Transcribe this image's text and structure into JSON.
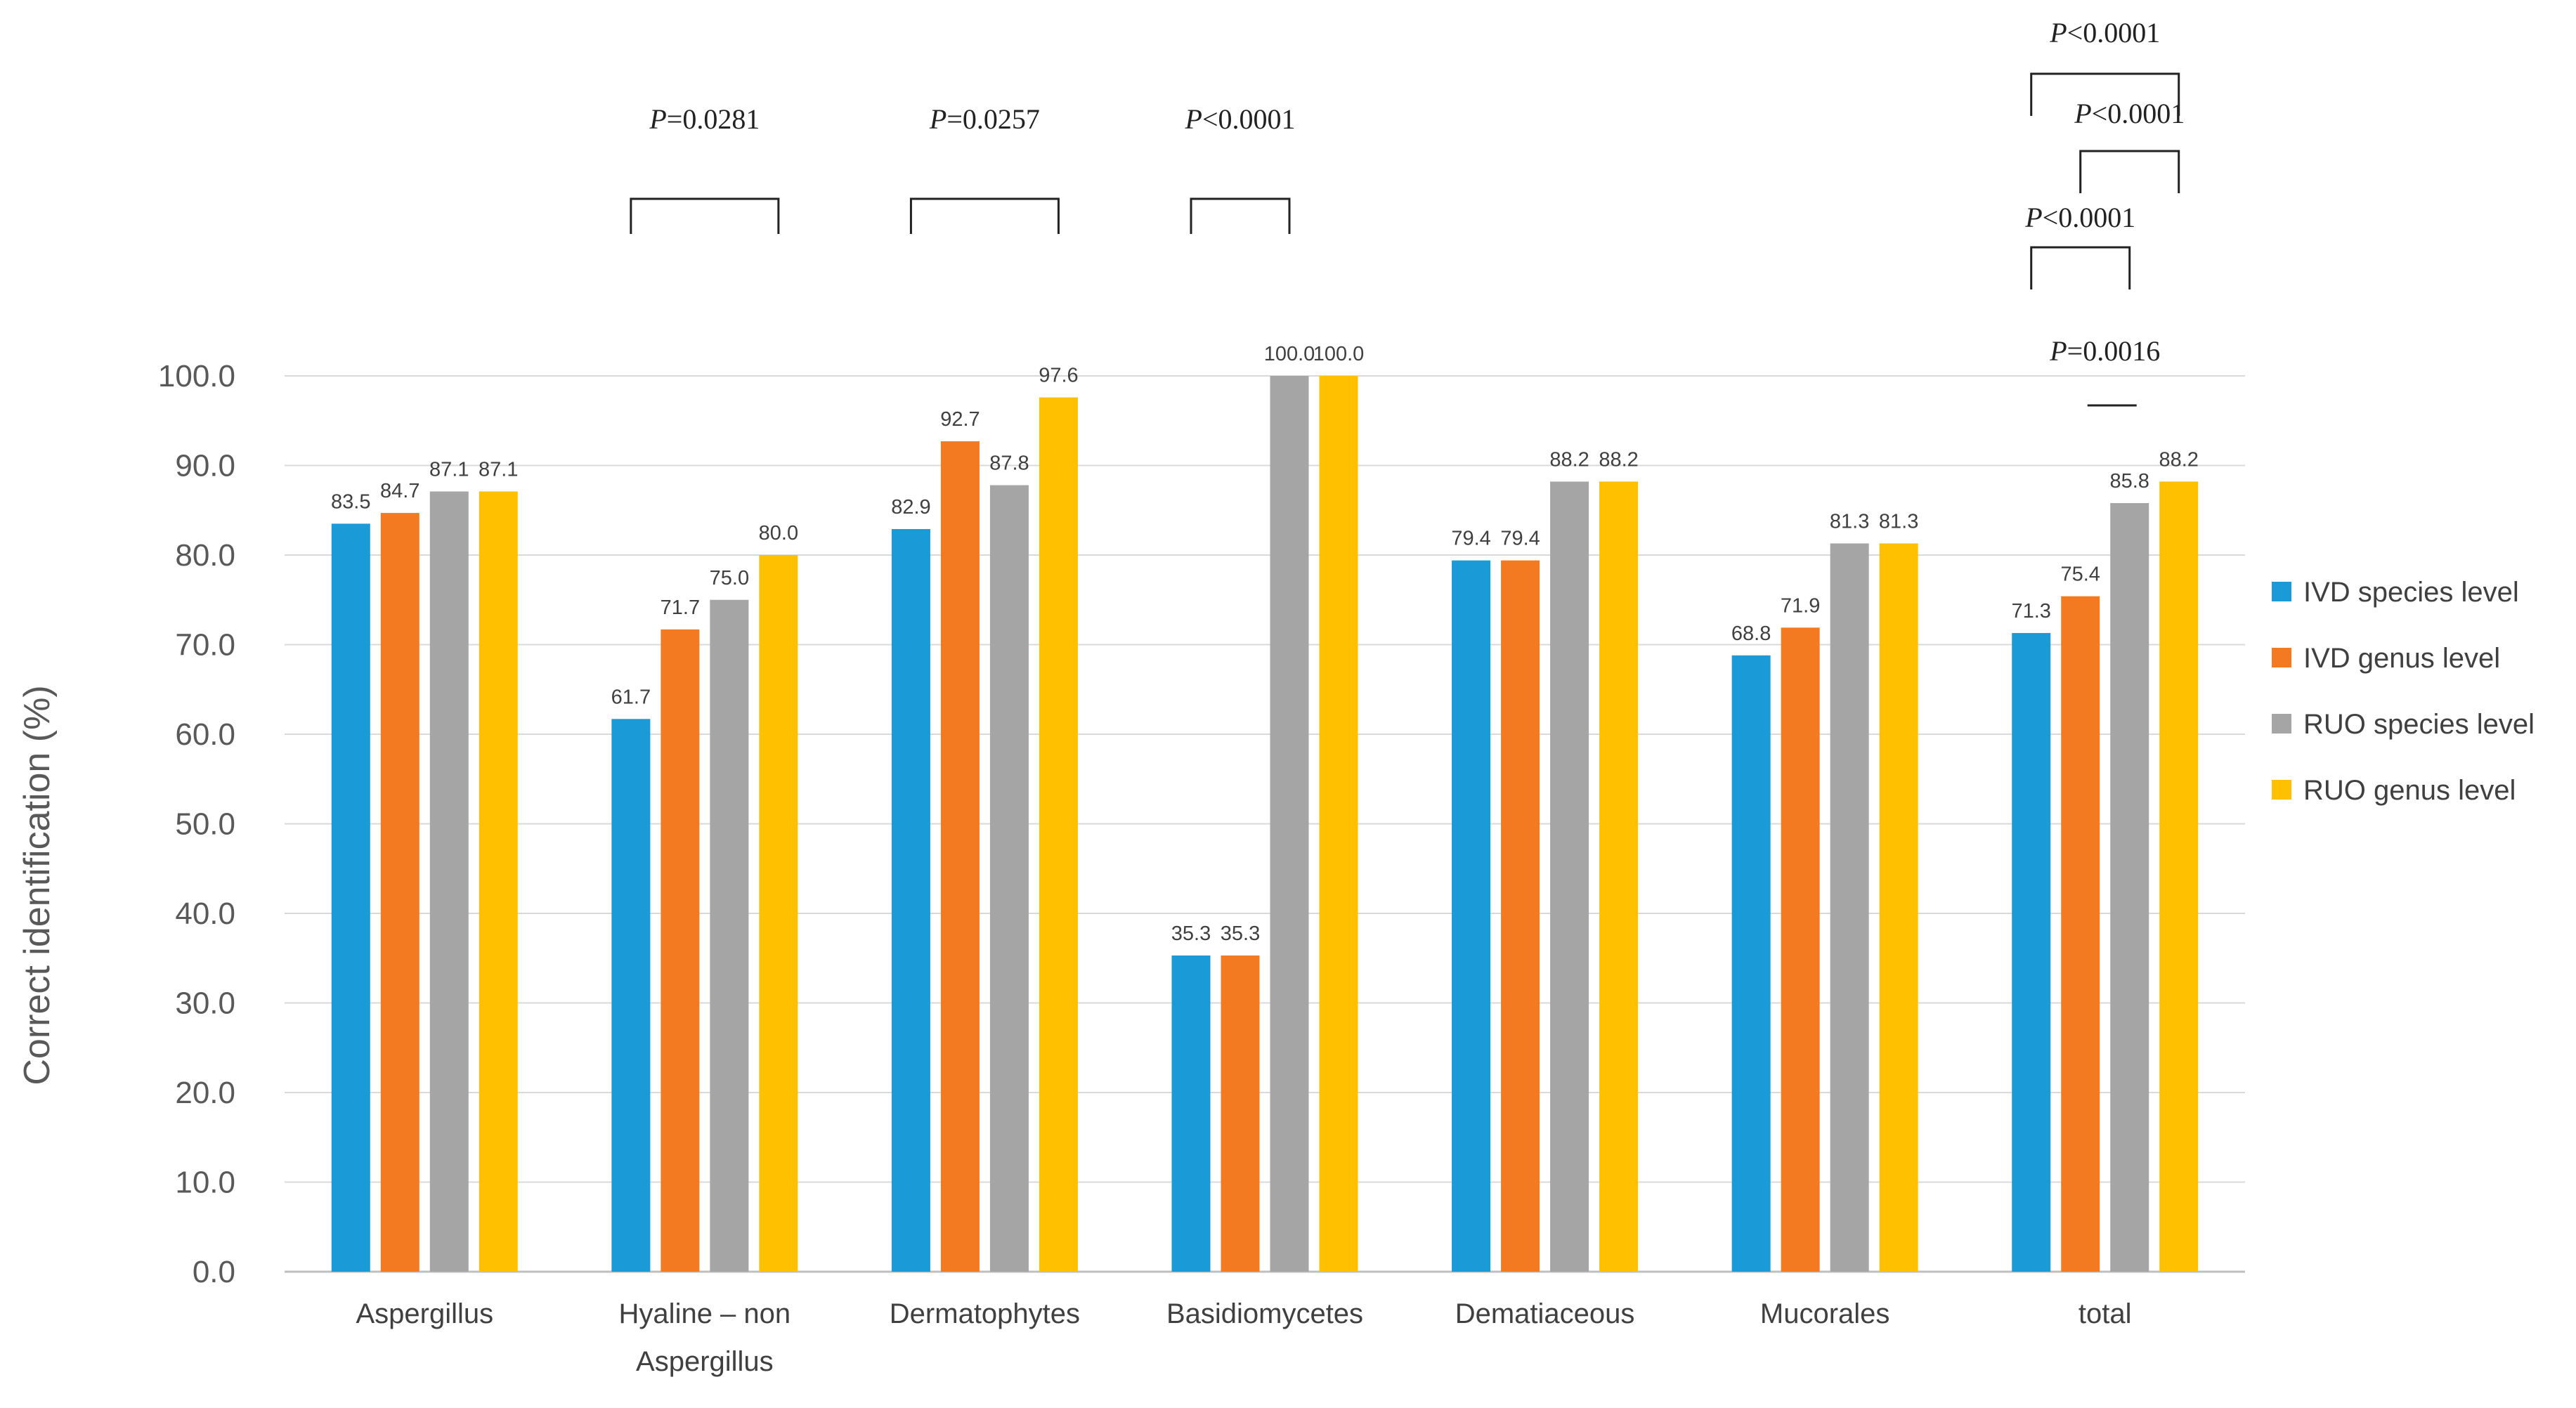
{
  "chart_data": {
    "type": "bar",
    "title": "",
    "xlabel": "",
    "ylabel": "Correct identification (%)",
    "ylim": [
      0,
      100
    ],
    "yticks": [
      "0.0",
      "10.0",
      "20.0",
      "30.0",
      "40.0",
      "50.0",
      "60.0",
      "70.0",
      "80.0",
      "90.0",
      "100.0"
    ],
    "grid": true,
    "legend_position": "right",
    "categories": [
      [
        "Aspergillus"
      ],
      [
        "Hyaline – non",
        "Aspergillus"
      ],
      [
        "Dermatophytes"
      ],
      [
        "Basidiomycetes"
      ],
      [
        "Dematiaceous"
      ],
      [
        "Mucorales"
      ],
      [
        "total"
      ]
    ],
    "series": [
      {
        "name": "IVD species level",
        "color": "#1a9ad6",
        "values": [
          83.5,
          61.7,
          82.9,
          35.3,
          79.4,
          68.8,
          71.3
        ],
        "labels": [
          "83.5",
          "61.7",
          "82.9",
          "35.3",
          "79.4",
          "68.8",
          "71.3"
        ]
      },
      {
        "name": "IVD genus level",
        "color": "#f47a22",
        "values": [
          84.7,
          71.7,
          92.7,
          35.3,
          79.4,
          71.9,
          75.4
        ],
        "labels": [
          "84.7",
          "71.7",
          "92.7",
          "35.3",
          "79.4",
          "71.9",
          "75.4"
        ]
      },
      {
        "name": "RUO species level",
        "color": "#a5a5a5",
        "values": [
          87.1,
          75.0,
          87.8,
          100.0,
          88.2,
          81.3,
          85.8
        ],
        "labels": [
          "87.1",
          "75.0",
          "87.8",
          "100.0",
          "88.2",
          "81.3",
          "85.8"
        ]
      },
      {
        "name": "RUO genus level",
        "color": "#ffc000",
        "values": [
          87.1,
          80.0,
          97.6,
          100.0,
          88.2,
          81.3,
          88.2
        ],
        "labels": [
          "87.1",
          "80.0",
          "97.6",
          "100.0",
          "88.2",
          "81.3",
          "88.2"
        ]
      }
    ],
    "annotations": [
      {
        "category": 1,
        "from_series": 0,
        "to_series": 3,
        "label_prefix": "P",
        "label_value": "=0.0281",
        "level": 0
      },
      {
        "category": 2,
        "from_series": 0,
        "to_series": 3,
        "label_prefix": "P",
        "label_value": "=0.0257",
        "level": 0
      },
      {
        "category": 3,
        "from_series": 0,
        "to_series": 2,
        "label_prefix": "P",
        "label_value": "<0.0001",
        "level": 0
      },
      {
        "category": 6,
        "from_series": 0,
        "to_series": 3,
        "label_prefix": "P",
        "label_value": "<0.0001",
        "level": 3
      },
      {
        "category": 6,
        "from_series": 1,
        "to_series": 3,
        "label_prefix": "P",
        "label_value": "<0.0001",
        "level": 2
      },
      {
        "category": 6,
        "from_series": 0,
        "to_series": 2,
        "label_prefix": "P",
        "label_value": "<0.0001",
        "level": 1
      },
      {
        "category": 6,
        "from_series": 1,
        "to_series": 2,
        "label_prefix": "P",
        "label_value": "=0.0016",
        "level": 0,
        "style": "line"
      }
    ]
  }
}
